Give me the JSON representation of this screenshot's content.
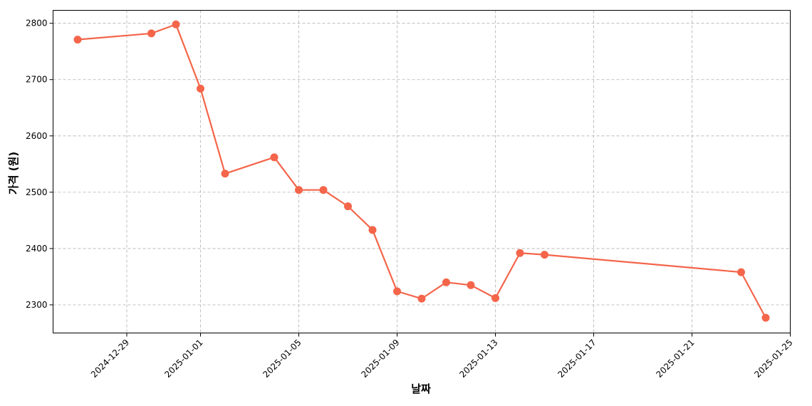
{
  "chart_data": {
    "type": "line",
    "title": "",
    "xlabel": "날짜",
    "ylabel": "가격 (원)",
    "x_ticks": [
      "2024-12-29",
      "2025-01-01",
      "2025-01-05",
      "2025-01-09",
      "2025-01-13",
      "2025-01-17",
      "2025-01-21",
      "2025-01-25"
    ],
    "y_ticks": [
      2300,
      2400,
      2500,
      2600,
      2700,
      2800
    ],
    "xlim": [
      "2024-12-26",
      "2025-01-25"
    ],
    "ylim": [
      2250,
      2823
    ],
    "grid": true,
    "line_color": "#f4654a",
    "series": [
      {
        "name": "",
        "points": [
          {
            "x": "2024-12-27",
            "y": 2771
          },
          {
            "x": "2024-12-30",
            "y": 2782
          },
          {
            "x": "2024-12-31",
            "y": 2798
          },
          {
            "x": "2025-01-01",
            "y": 2684
          },
          {
            "x": "2025-01-02",
            "y": 2533
          },
          {
            "x": "2025-01-04",
            "y": 2562
          },
          {
            "x": "2025-01-05",
            "y": 2504
          },
          {
            "x": "2025-01-06",
            "y": 2504
          },
          {
            "x": "2025-01-07",
            "y": 2475
          },
          {
            "x": "2025-01-08",
            "y": 2433
          },
          {
            "x": "2025-01-09",
            "y": 2324
          },
          {
            "x": "2025-01-10",
            "y": 2311
          },
          {
            "x": "2025-01-11",
            "y": 2340
          },
          {
            "x": "2025-01-12",
            "y": 2335
          },
          {
            "x": "2025-01-13",
            "y": 2312
          },
          {
            "x": "2025-01-14",
            "y": 2392
          },
          {
            "x": "2025-01-15",
            "y": 2389
          },
          {
            "x": "2025-01-23",
            "y": 2358
          },
          {
            "x": "2025-01-24",
            "y": 2277
          }
        ]
      }
    ]
  }
}
